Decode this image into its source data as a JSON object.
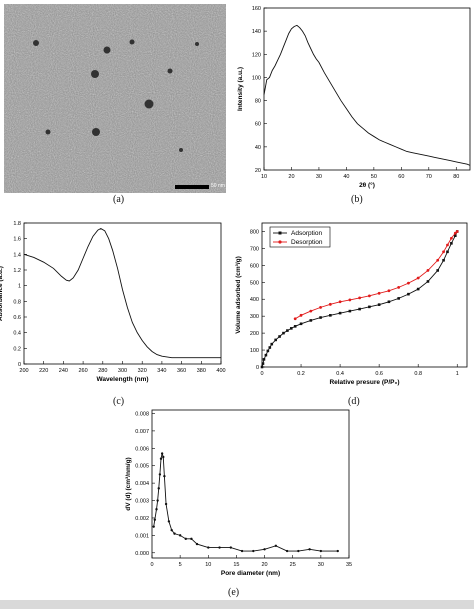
{
  "labels": {
    "a": "(a)",
    "b": "(b)",
    "c": "(c)",
    "d": "(d)",
    "e": "(e)"
  },
  "sem": {
    "scale_text": "50 nm"
  },
  "chart_data": [
    {
      "id": "b",
      "type": "line",
      "xlabel": "2θ (°)",
      "ylabel": "Intensity (a.u.)",
      "xlim": [
        10,
        85
      ],
      "ylim": [
        20,
        160
      ],
      "xticks": [
        10,
        20,
        30,
        40,
        50,
        60,
        70,
        80
      ],
      "yticks": [
        20,
        40,
        60,
        80,
        100,
        120,
        140,
        160
      ],
      "x": [
        10,
        11,
        12,
        13,
        14,
        15,
        16,
        17,
        18,
        19,
        20,
        21,
        22,
        23,
        24,
        25,
        26,
        27,
        28,
        29,
        30,
        32,
        34,
        36,
        38,
        40,
        42,
        44,
        46,
        48,
        50,
        52,
        54,
        56,
        58,
        60,
        62,
        64,
        66,
        68,
        70,
        72,
        74,
        76,
        78,
        80,
        82,
        84,
        85
      ],
      "y": [
        85,
        98,
        100,
        106,
        110,
        115,
        120,
        126,
        132,
        138,
        142,
        144,
        145,
        143,
        140,
        136,
        130,
        125,
        120,
        116,
        113,
        104,
        96,
        88,
        80,
        73,
        66,
        60,
        56,
        52,
        49,
        46,
        44,
        42,
        40,
        38,
        36,
        35,
        34,
        33,
        32,
        31,
        30,
        29,
        28,
        27,
        26,
        25,
        24
      ]
    },
    {
      "id": "c",
      "type": "line",
      "xlabel": "Wavelength (nm)",
      "ylabel": "Absorbance (a.u.)",
      "xlim": [
        200,
        400
      ],
      "ylim": [
        0,
        1.8
      ],
      "xticks": [
        200,
        220,
        240,
        260,
        280,
        300,
        320,
        340,
        360,
        380,
        400
      ],
      "yticks": [
        0.0,
        0.2,
        0.4,
        0.6,
        0.8,
        1.0,
        1.2,
        1.4,
        1.6,
        1.8
      ],
      "x": [
        200,
        210,
        220,
        230,
        238,
        243,
        246,
        250,
        255,
        260,
        265,
        270,
        275,
        278,
        282,
        286,
        290,
        295,
        300,
        305,
        310,
        315,
        320,
        325,
        330,
        335,
        340,
        345,
        350,
        370,
        400
      ],
      "y": [
        1.4,
        1.36,
        1.3,
        1.22,
        1.12,
        1.07,
        1.06,
        1.1,
        1.2,
        1.35,
        1.5,
        1.63,
        1.71,
        1.73,
        1.7,
        1.6,
        1.45,
        1.22,
        0.95,
        0.72,
        0.53,
        0.4,
        0.3,
        0.22,
        0.16,
        0.12,
        0.1,
        0.09,
        0.08,
        0.08,
        0.08
      ]
    },
    {
      "id": "d",
      "type": "line",
      "xlabel": "Relative presure (P/P₀)",
      "ylabel": "Volume adsorbed (cm³/g)",
      "xlim": [
        0,
        1.05
      ],
      "ylim": [
        0,
        850
      ],
      "xticks": [
        0.0,
        0.2,
        0.4,
        0.6,
        0.8,
        1.0
      ],
      "yticks": [
        0,
        100,
        200,
        300,
        400,
        500,
        600,
        700,
        800
      ],
      "legend_position": "top-left",
      "series": [
        {
          "name": "Adsorption",
          "color": "#111111",
          "marker": "square",
          "x": [
            0.0,
            0.005,
            0.01,
            0.02,
            0.03,
            0.04,
            0.05,
            0.07,
            0.09,
            0.11,
            0.13,
            0.15,
            0.17,
            0.2,
            0.25,
            0.3,
            0.35,
            0.4,
            0.45,
            0.5,
            0.55,
            0.6,
            0.65,
            0.7,
            0.75,
            0.8,
            0.85,
            0.9,
            0.93,
            0.95,
            0.97,
            0.99,
            1.0
          ],
          "y": [
            0,
            20,
            45,
            70,
            95,
            115,
            135,
            160,
            180,
            200,
            215,
            228,
            240,
            255,
            275,
            292,
            305,
            318,
            330,
            342,
            355,
            368,
            385,
            405,
            430,
            460,
            505,
            570,
            630,
            680,
            730,
            775,
            800
          ]
        },
        {
          "name": "Desorption",
          "color": "#e11b1b",
          "marker": "circle",
          "x": [
            1.0,
            0.99,
            0.97,
            0.95,
            0.93,
            0.9,
            0.85,
            0.8,
            0.75,
            0.7,
            0.65,
            0.6,
            0.55,
            0.5,
            0.45,
            0.4,
            0.35,
            0.3,
            0.25,
            0.2,
            0.17
          ],
          "y": [
            800,
            790,
            760,
            720,
            680,
            630,
            570,
            525,
            495,
            470,
            450,
            435,
            420,
            408,
            396,
            385,
            370,
            352,
            330,
            305,
            285
          ]
        }
      ]
    },
    {
      "id": "e",
      "type": "line",
      "xlabel": "Pore diameter (nm)",
      "ylabel": "dV (d) (cm³/nm/g)",
      "xlim": [
        0,
        35
      ],
      "ylim": [
        -0.0003,
        0.0082
      ],
      "xticks": [
        0,
        5,
        10,
        15,
        20,
        25,
        30,
        35
      ],
      "yticks": [
        0.0,
        0.001,
        0.002,
        0.003,
        0.004,
        0.005,
        0.006,
        0.007,
        0.008
      ],
      "ytick_labels": [
        "0.000",
        "0.001",
        "0.002",
        "0.003",
        "0.004",
        "0.005",
        "0.006",
        "0.007",
        "0.008"
      ],
      "x": [
        0.3,
        0.5,
        0.8,
        1.0,
        1.2,
        1.4,
        1.6,
        1.8,
        2.0,
        2.2,
        2.5,
        3.0,
        3.5,
        4.0,
        5.0,
        6.0,
        7.0,
        8.0,
        10.0,
        12.0,
        14.0,
        16.0,
        18.0,
        20.0,
        22.0,
        24.0,
        26.0,
        28.0,
        30.0,
        33.0
      ],
      "y": [
        0.0015,
        0.0019,
        0.0025,
        0.003,
        0.0037,
        0.0045,
        0.0054,
        0.0057,
        0.0055,
        0.0044,
        0.0028,
        0.0018,
        0.0013,
        0.0011,
        0.001,
        0.0008,
        0.0008,
        0.0005,
        0.0003,
        0.0003,
        0.0003,
        0.0001,
        0.0001,
        0.0002,
        0.0004,
        0.0001,
        0.0001,
        0.0002,
        0.0001,
        0.0001
      ]
    }
  ]
}
